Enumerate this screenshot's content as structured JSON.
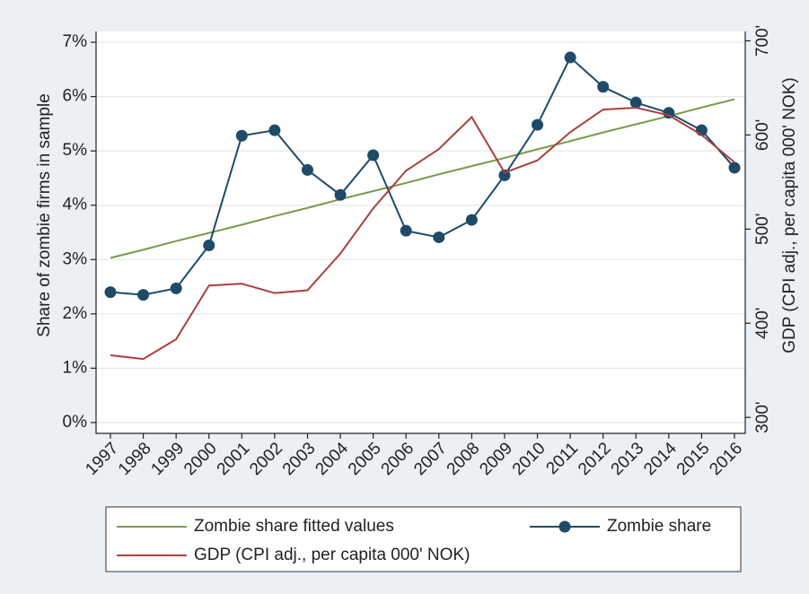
{
  "chart_data": {
    "type": "line",
    "ylabel": "Share of zombie firms in sample",
    "y2label": "GDP (CPI adj., per capita 000' NOK)",
    "categories": [
      "1997",
      "1998",
      "1999",
      "2000",
      "2001",
      "2002",
      "2003",
      "2004",
      "2005",
      "2006",
      "2007",
      "2008",
      "2009",
      "2010",
      "2011",
      "2012",
      "2013",
      "2014",
      "2015",
      "2016"
    ],
    "series": [
      {
        "name": "Zombie share fitted values",
        "color": "#7a9a4a",
        "markers": false,
        "values": [
          3.03,
          3.18,
          3.34,
          3.49,
          3.64,
          3.8,
          3.95,
          4.11,
          4.26,
          4.41,
          4.57,
          4.72,
          4.87,
          5.03,
          5.18,
          5.34,
          5.49,
          5.64,
          5.8,
          5.95
        ]
      },
      {
        "name": "Zombie share",
        "color": "#1f4a68",
        "markers": true,
        "values": [
          2.4,
          2.35,
          2.47,
          3.26,
          5.28,
          5.38,
          4.65,
          4.19,
          4.92,
          3.53,
          3.41,
          3.73,
          4.55,
          5.48,
          6.72,
          6.18,
          5.89,
          5.7,
          5.38,
          4.69
        ]
      },
      {
        "name": "GDP (CPI adj., per capita 000' NOK)",
        "color": "#a8403f",
        "markers": false,
        "axis": "y2",
        "values": [
          366,
          362,
          383,
          440,
          442,
          432,
          435,
          474,
          522,
          562,
          585,
          619,
          560,
          573,
          603,
          627,
          629,
          621,
          600,
          571
        ]
      }
    ],
    "ylim": [
      -0.2,
      7.2
    ],
    "yticks": [
      {
        "value": 0,
        "label": "0%"
      },
      {
        "value": 1,
        "label": "1%"
      },
      {
        "value": 2,
        "label": "2%"
      },
      {
        "value": 3,
        "label": "3%"
      },
      {
        "value": 4,
        "label": "4%"
      },
      {
        "value": 5,
        "label": "5%"
      },
      {
        "value": 6,
        "label": "6%"
      },
      {
        "value": 7,
        "label": "7%"
      }
    ],
    "y2lim": [
      283,
      710
    ],
    "y2ticks": [
      {
        "value": 300,
        "label": "300'"
      },
      {
        "value": 400,
        "label": "400'"
      },
      {
        "value": 500,
        "label": "500'"
      },
      {
        "value": 600,
        "label": "600'"
      },
      {
        "value": 700,
        "label": "700'"
      }
    ],
    "grid": true
  }
}
